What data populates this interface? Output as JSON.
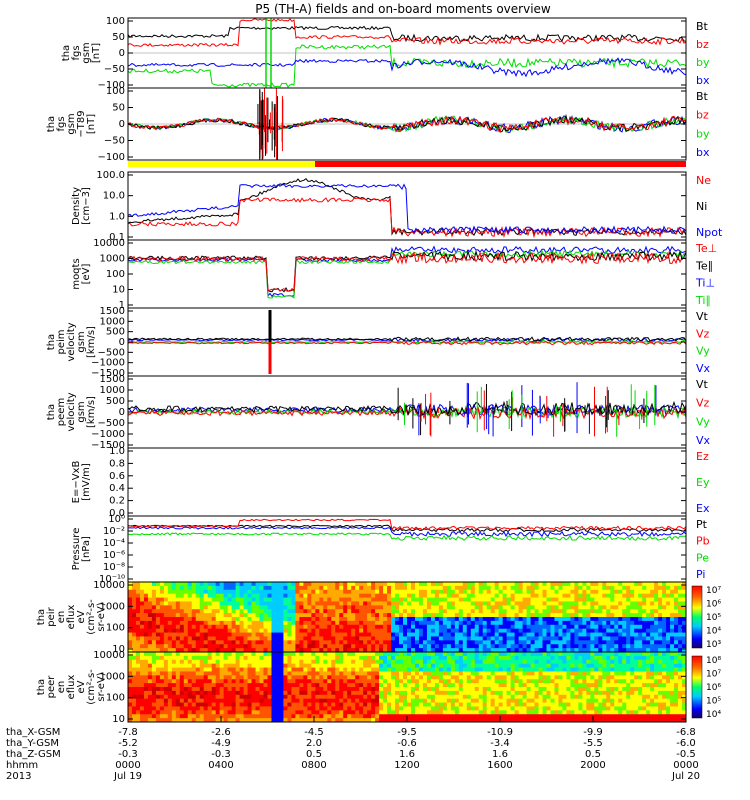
{
  "title": "P5 (TH-A) fields and on-board moments overview",
  "colors": {
    "black": "#000000",
    "red": "#ff0000",
    "green": "#00dd00",
    "blue": "#0000ff",
    "yellow": "#ffff00"
  },
  "chart_data": [
    {
      "type": "line",
      "ylabel": [
        "tha",
        "fgs",
        "gsm",
        "[nT]"
      ],
      "ytick_labels": [
        "100",
        "50",
        "0",
        "−50",
        "−100"
      ],
      "ylim": [
        -100,
        100
      ],
      "series": [
        {
          "name": "Bt",
          "color": "#000000"
        },
        {
          "name": "bz",
          "color": "#ff0000"
        },
        {
          "name": "by",
          "color": "#00dd00"
        },
        {
          "name": "bx",
          "color": "#0000ff"
        }
      ]
    },
    {
      "type": "line",
      "ylabel": [
        "tha",
        "fgs",
        "gsm",
        "−T89",
        "[nT]"
      ],
      "ytick_labels": [
        "100",
        "50",
        "0",
        "−50",
        "−100"
      ],
      "ylim": [
        -120,
        120
      ],
      "series": [
        {
          "name": "Bt",
          "color": "#000000"
        },
        {
          "name": "bz",
          "color": "#ff0000"
        },
        {
          "name": "by",
          "color": "#00dd00"
        },
        {
          "name": "bx",
          "color": "#0000ff"
        }
      ]
    },
    {
      "type": "line",
      "ylabel": [
        "Density",
        "[cm−3]"
      ],
      "ytick_labels": [
        "100.0",
        "10.0",
        "1.0",
        "0.1"
      ],
      "scale": "log",
      "series": [
        {
          "name": "Ne",
          "color": "#ff0000"
        },
        {
          "name": "Ni",
          "color": "#000000"
        },
        {
          "name": "Npot",
          "color": "#0000ff"
        }
      ]
    },
    {
      "type": "line",
      "ylabel": [
        "moqts",
        "[eV]"
      ],
      "ytick_labels": [
        "10000",
        "1000",
        "100",
        "10",
        "1"
      ],
      "scale": "log",
      "series": [
        {
          "name": "Te⊥",
          "color": "#ff0000"
        },
        {
          "name": "Te∥",
          "color": "#000000"
        },
        {
          "name": "Ti⊥",
          "color": "#0000ff"
        },
        {
          "name": "Ti∥",
          "color": "#00dd00"
        }
      ]
    },
    {
      "type": "line",
      "ylabel": [
        "tha",
        "peim",
        "velocity",
        "gsm",
        "[km/s]"
      ],
      "ytick_labels": [
        "1500",
        "1000",
        "500",
        "0",
        "−500",
        "−1000",
        "−1500"
      ],
      "ylim": [
        -1500,
        1500
      ],
      "series": [
        {
          "name": "Vt",
          "color": "#000000"
        },
        {
          "name": "Vz",
          "color": "#ff0000"
        },
        {
          "name": "Vy",
          "color": "#00dd00"
        },
        {
          "name": "Vx",
          "color": "#0000ff"
        }
      ]
    },
    {
      "type": "line",
      "ylabel": [
        "tha",
        "peem",
        "velocity",
        "gsm",
        "[km/s]"
      ],
      "ytick_labels": [
        "1500",
        "1000",
        "500",
        "0",
        "−500",
        "−1000",
        "−1500"
      ],
      "ylim": [
        -1500,
        1500
      ],
      "series": [
        {
          "name": "Vt",
          "color": "#000000"
        },
        {
          "name": "Vz",
          "color": "#ff0000"
        },
        {
          "name": "Vy",
          "color": "#00dd00"
        },
        {
          "name": "Vx",
          "color": "#0000ff"
        }
      ]
    },
    {
      "type": "line",
      "ylabel": [
        "E=−VxB",
        "[mV/m]"
      ],
      "ytick_labels": [
        "1.0",
        "0.8",
        "0.6",
        "0.4",
        "0.2",
        "0.0"
      ],
      "ylim": [
        0,
        1
      ],
      "series": [
        {
          "name": "Ez",
          "color": "#ff0000"
        },
        {
          "name": "Ey",
          "color": "#00dd00"
        },
        {
          "name": "Ex",
          "color": "#0000ff"
        }
      ]
    },
    {
      "type": "line",
      "ylabel": [
        "Pressure",
        "[nPa]"
      ],
      "ytick_labels": [
        "10⁰",
        "10⁻²",
        "10⁻⁴",
        "10⁻⁶",
        "10⁻⁸",
        "10⁻¹⁰"
      ],
      "scale": "log",
      "series": [
        {
          "name": "Pt",
          "color": "#000000"
        },
        {
          "name": "Pb",
          "color": "#ff0000"
        },
        {
          "name": "Pe",
          "color": "#00dd00"
        },
        {
          "name": "Pi",
          "color": "#0000ff"
        }
      ]
    },
    {
      "type": "heatmap",
      "ylabel": [
        "tha",
        "peir",
        "en",
        "eflux",
        "eV",
        "(cm²-s-",
        "sr-eV)"
      ],
      "ytick_labels": [
        "10000",
        "1000",
        "100",
        "10"
      ],
      "colorbar_ticks": [
        "10⁷",
        "10⁶",
        "10⁵",
        "10⁴",
        "10³"
      ]
    },
    {
      "type": "heatmap",
      "ylabel": [
        "tha",
        "peer",
        "en",
        "eflux",
        "eV",
        "(cm²-s-",
        "sr-eV)"
      ],
      "ytick_labels": [
        "10000",
        "1000",
        "100",
        "10"
      ],
      "colorbar_ticks": [
        "10⁸",
        "10⁷",
        "10⁶",
        "10⁵",
        "10⁴"
      ]
    }
  ],
  "x_axis": {
    "row_labels": [
      "tha_X-GSM",
      "tha_Y-GSM",
      "tha_Z-GSM",
      "hhmm",
      "2013"
    ],
    "columns": [
      {
        "x": "-7.8",
        "y": "-5.2",
        "z": "-0.3",
        "hhmm": "0000",
        "date": "Jul 19"
      },
      {
        "x": "-2.6",
        "y": "-4.9",
        "z": "-0.3",
        "hhmm": "0400",
        "date": ""
      },
      {
        "x": "-4.5",
        "y": "2.0",
        "z": "0.5",
        "hhmm": "0800",
        "date": ""
      },
      {
        "x": "-9.5",
        "y": "-0.6",
        "z": "1.6",
        "hhmm": "1200",
        "date": ""
      },
      {
        "x": "-10.9",
        "y": "-3.4",
        "z": "1.6",
        "hhmm": "1600",
        "date": ""
      },
      {
        "x": "-9.9",
        "y": "-5.5",
        "z": "0.5",
        "hhmm": "2000",
        "date": ""
      },
      {
        "x": "-6.8",
        "y": "-6.0",
        "z": "-0.5",
        "hhmm": "0000",
        "date": "Jul 20"
      }
    ]
  }
}
